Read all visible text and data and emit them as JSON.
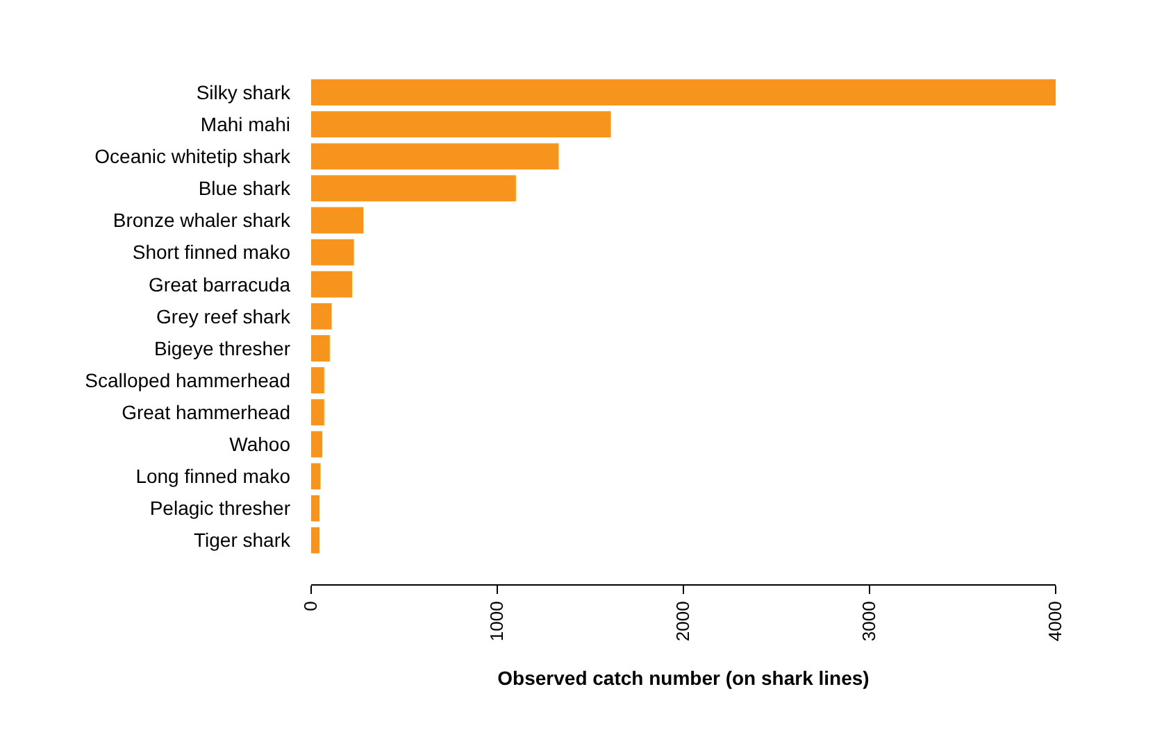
{
  "chart_data": {
    "type": "bar",
    "orientation": "horizontal",
    "xlabel": "Observed catch number (on shark lines)",
    "categories": [
      "Silky shark",
      "Mahi mahi",
      "Oceanic whitetip shark",
      "Blue shark",
      "Bronze whaler shark",
      "Short finned mako",
      "Great barracuda",
      "Grey reef shark",
      "Bigeye thresher",
      "Scalloped hammerhead",
      "Great hammerhead",
      "Wahoo",
      "Long finned mako",
      "Pelagic thresher",
      "Tiger shark"
    ],
    "values": [
      4000,
      1610,
      1330,
      1100,
      280,
      230,
      220,
      110,
      100,
      70,
      70,
      60,
      50,
      45,
      45
    ],
    "color": "#f7941e",
    "xlim": [
      0,
      4000
    ],
    "xticks": [
      0,
      1000,
      2000,
      3000,
      4000
    ]
  }
}
